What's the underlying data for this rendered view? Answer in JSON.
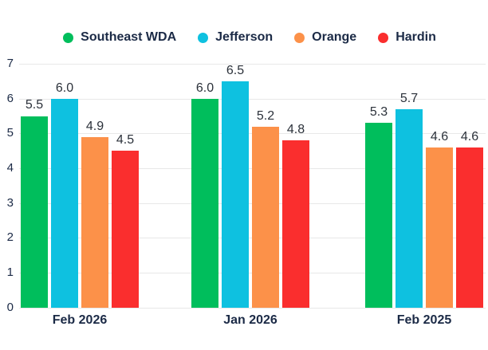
{
  "chart_data": {
    "type": "bar",
    "title": "",
    "categories": [
      "Feb 2026",
      "Jan 2026",
      "Feb 2025"
    ],
    "series": [
      {
        "name": "Southeast WDA",
        "color": "#00be5c",
        "values": [
          5.5,
          6.0,
          5.3
        ]
      },
      {
        "name": "Jefferson",
        "color": "#0ec1e0",
        "values": [
          6.0,
          6.5,
          5.7
        ]
      },
      {
        "name": "Orange",
        "color": "#fc9149",
        "values": [
          4.9,
          5.2,
          4.6
        ]
      },
      {
        "name": "Hardin",
        "color": "#fa2e2e",
        "values": [
          4.5,
          4.8,
          4.6
        ]
      }
    ],
    "xlabel": "",
    "ylabel": "",
    "ylim": [
      0,
      7
    ],
    "yticks": [
      0,
      1,
      2,
      3,
      4,
      5,
      6,
      7
    ],
    "grid": true,
    "legend_position": "top",
    "value_labels": true,
    "value_label_decimals": 1
  },
  "colors": {
    "background": "#ffffff",
    "gridline": "#e8e8e8",
    "axis_text": "#1b2a46",
    "value_text": "#2b313a"
  }
}
